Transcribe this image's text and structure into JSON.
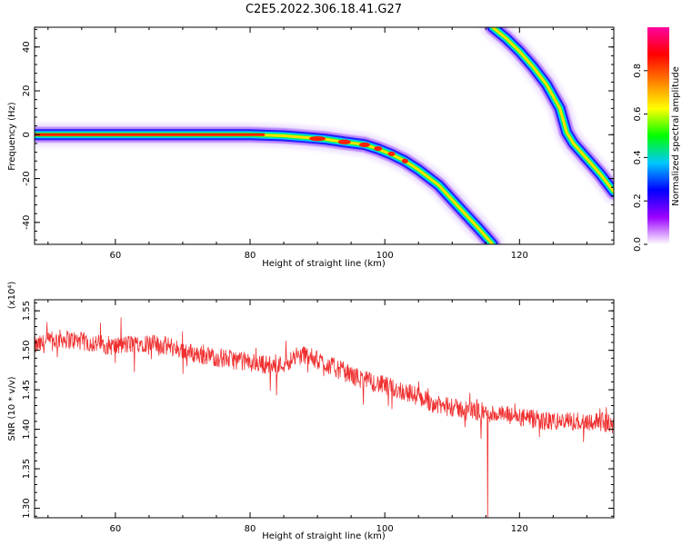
{
  "title": "C2E5.2022.306.18.41.G27",
  "colorbar": {
    "label": "Normalized spectral amplitude",
    "ticks": [
      "0.0",
      "0.2",
      "0.4",
      "0.6",
      "0.8"
    ],
    "tick_values": [
      0.0,
      0.2,
      0.4,
      0.6,
      0.8
    ],
    "range": [
      0,
      1
    ],
    "colors": [
      "#ffffff",
      "#9b00ff",
      "#0000ff",
      "#00c8ff",
      "#00ff00",
      "#ffff00",
      "#ff8000",
      "#ff0000",
      "#ff00a0"
    ]
  },
  "chart_data": [
    {
      "type": "heatmap",
      "xlabel": "Height of straight line (km)",
      "ylabel": "Frequency (Hz)",
      "xlim": [
        48,
        134
      ],
      "ylim": [
        -50,
        49
      ],
      "xticks": [
        60,
        80,
        100,
        120
      ],
      "xtick_labels": [
        "60",
        "80",
        "100",
        "120"
      ],
      "yticks": [
        -40,
        -20,
        0,
        20,
        40
      ],
      "ytick_labels": [
        "-40",
        "-20",
        "0",
        "20",
        "40"
      ],
      "ridges": [
        {
          "name": "",
          "x": [
            48,
            60,
            70,
            80,
            85,
            88,
            91,
            94,
            97,
            99,
            101,
            103,
            105,
            108,
            111,
            114,
            116
          ],
          "y": [
            0,
            0,
            0,
            0,
            -0.5,
            -1.2,
            -2,
            -3.3,
            -4.5,
            -6.5,
            -9,
            -12,
            -16,
            -23,
            -33,
            -43,
            -50
          ]
        },
        {
          "name": "",
          "x": [
            116,
            118,
            120,
            122,
            124,
            126,
            127,
            128,
            130,
            132,
            134
          ],
          "y": [
            49,
            44,
            38,
            31,
            23,
            12,
            1,
            -4,
            -11,
            -18,
            -26
          ]
        }
      ]
    },
    {
      "type": "line",
      "xlabel": "Height of straight line (km)",
      "ylabel": "SNR (10 * v/v)",
      "y_multiplier": "(x10⁴)",
      "xlim": [
        48,
        134
      ],
      "ylim": [
        1.288,
        1.564
      ],
      "xticks": [
        60,
        80,
        100,
        120
      ],
      "xtick_labels": [
        "60",
        "80",
        "100",
        "120"
      ],
      "yticks": [
        1.3,
        1.35,
        1.4,
        1.45,
        1.5,
        1.55
      ],
      "ytick_labels": [
        "1.30",
        "1.35",
        "1.40",
        "1.45",
        "1.50",
        "1.55"
      ],
      "series": [
        {
          "name": "",
          "color": "#f03030",
          "x": [
            48,
            52,
            56,
            60,
            64,
            68,
            72,
            76,
            80,
            84,
            88,
            92,
            96,
            100,
            104,
            108,
            112,
            116,
            120,
            124,
            128,
            132,
            134
          ],
          "y": [
            1.505,
            1.515,
            1.51,
            1.505,
            1.51,
            1.505,
            1.495,
            1.49,
            1.485,
            1.48,
            1.495,
            1.48,
            1.465,
            1.455,
            1.445,
            1.43,
            1.425,
            1.42,
            1.415,
            1.41,
            1.41,
            1.41,
            1.405
          ],
          "noise_amplitude": 0.012
        }
      ]
    }
  ]
}
